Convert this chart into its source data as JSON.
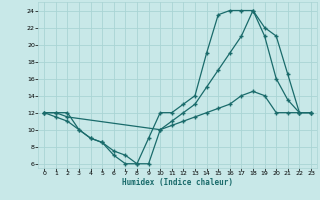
{
  "xlabel": "Humidex (Indice chaleur)",
  "xlim": [
    -0.5,
    23.5
  ],
  "ylim": [
    5.5,
    25
  ],
  "xticks": [
    0,
    1,
    2,
    3,
    4,
    5,
    6,
    7,
    8,
    9,
    10,
    11,
    12,
    13,
    14,
    15,
    16,
    17,
    18,
    19,
    20,
    21,
    22,
    23
  ],
  "yticks": [
    6,
    8,
    10,
    12,
    14,
    16,
    18,
    20,
    22,
    24
  ],
  "bg_color": "#c8e8e8",
  "grid_color": "#aad4d4",
  "line_color": "#1a6b6b",
  "line1_x": [
    0,
    1,
    2,
    3,
    4,
    5,
    6,
    7,
    8,
    9,
    10,
    11,
    12,
    13,
    14,
    15,
    16,
    17,
    18,
    19,
    20,
    21,
    22,
    23
  ],
  "line1_y": [
    12,
    11.5,
    11,
    10,
    9,
    8.5,
    7,
    6,
    6,
    9,
    12,
    12,
    13,
    14,
    19,
    23.5,
    24,
    24,
    24,
    21,
    16,
    13.5,
    12,
    12
  ],
  "line2_x": [
    0,
    1,
    2,
    3,
    4,
    5,
    6,
    7,
    8,
    9,
    10,
    11,
    12,
    13,
    14,
    15,
    16,
    17,
    18,
    19,
    20,
    21,
    22,
    23
  ],
  "line2_y": [
    12,
    12,
    12,
    10,
    9,
    8.5,
    7.5,
    7,
    6,
    6,
    10,
    11,
    12,
    13,
    15,
    17,
    19,
    21,
    24,
    22,
    21,
    16.5,
    12,
    12
  ],
  "line3_x": [
    0,
    1,
    2,
    10,
    11,
    12,
    13,
    14,
    15,
    16,
    17,
    18,
    19,
    20,
    21,
    22,
    23
  ],
  "line3_y": [
    12,
    12,
    11.5,
    10,
    10.5,
    11,
    11.5,
    12,
    12.5,
    13,
    14,
    14.5,
    14,
    12,
    12,
    12,
    12
  ]
}
